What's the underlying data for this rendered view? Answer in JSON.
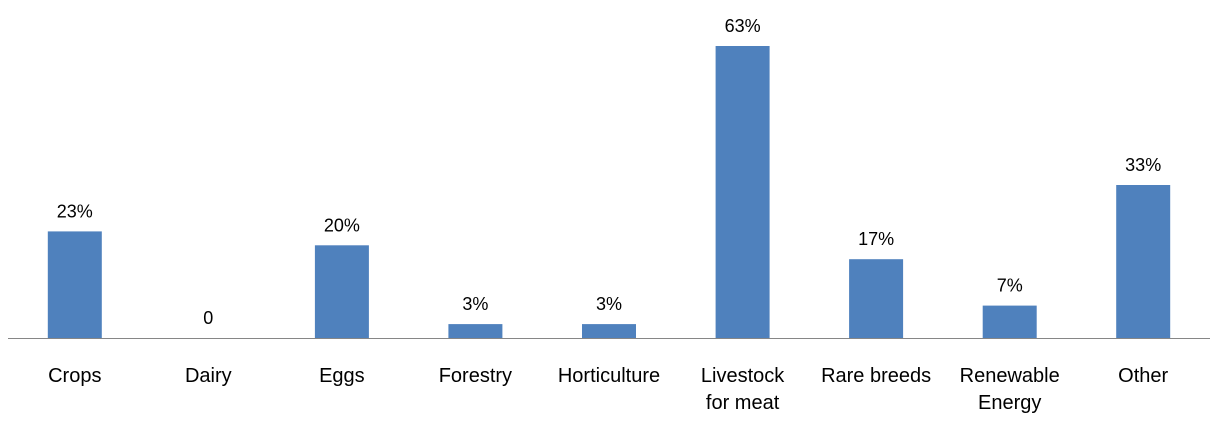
{
  "chart_data": {
    "type": "bar",
    "categories": [
      [
        "Crops"
      ],
      [
        "Dairy"
      ],
      [
        "Eggs"
      ],
      [
        "Forestry"
      ],
      [
        "Horticulture"
      ],
      [
        "Livestock",
        "for meat"
      ],
      [
        "Rare breeds"
      ],
      [
        "Renewable",
        "Energy"
      ],
      [
        "Other"
      ]
    ],
    "values": [
      23,
      0,
      20,
      3,
      3,
      63,
      17,
      7,
      33
    ],
    "data_labels": [
      "23%",
      "0",
      "20%",
      "3%",
      "3%",
      "63%",
      "17%",
      "7%",
      "33%"
    ],
    "ylim": [
      0,
      63
    ],
    "grid": false,
    "legend": "none",
    "bar_color": "#4f81bd",
    "axis_color": "#868686"
  }
}
